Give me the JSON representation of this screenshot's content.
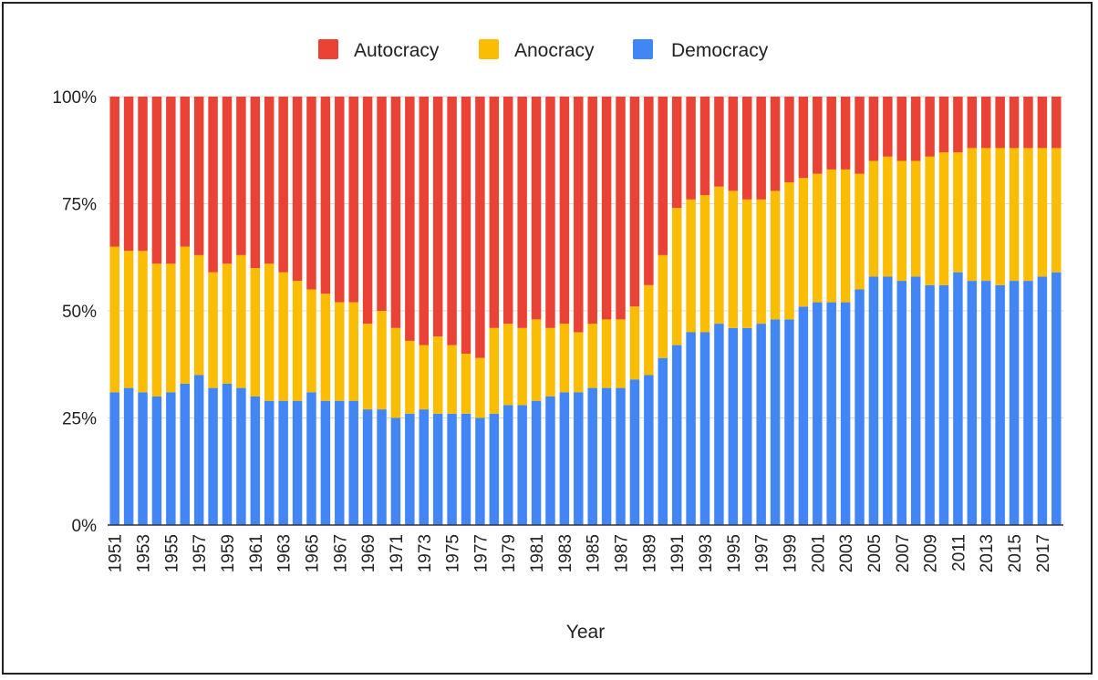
{
  "colors": {
    "democracy": "#4285f4",
    "anocracy": "#fbbc04",
    "autocracy": "#ea4335"
  },
  "legend": [
    {
      "label": "Autocracy",
      "color": "#ea4335"
    },
    {
      "label": "Anocracy",
      "color": "#fbbc04"
    },
    {
      "label": "Democracy",
      "color": "#4285f4"
    }
  ],
  "chart_data": {
    "type": "bar",
    "stacked": true,
    "percent_stacked": true,
    "xlabel": "Year",
    "ylabel": "",
    "ylim": [
      0,
      100
    ],
    "yticks": [
      "0%",
      "25%",
      "50%",
      "75%",
      "100%"
    ],
    "grid": true,
    "legend_position": "top",
    "categories": [
      "1951",
      "1952",
      "1953",
      "1954",
      "1955",
      "1956",
      "1957",
      "1958",
      "1959",
      "1960",
      "1961",
      "1962",
      "1963",
      "1964",
      "1965",
      "1966",
      "1967",
      "1968",
      "1969",
      "1970",
      "1971",
      "1972",
      "1973",
      "1974",
      "1975",
      "1976",
      "1977",
      "1978",
      "1979",
      "1980",
      "1981",
      "1982",
      "1983",
      "1984",
      "1985",
      "1986",
      "1987",
      "1988",
      "1989",
      "1990",
      "1991",
      "1992",
      "1993",
      "1994",
      "1995",
      "1996",
      "1997",
      "1998",
      "1999",
      "2000",
      "2001",
      "2002",
      "2003",
      "2004",
      "2005",
      "2006",
      "2007",
      "2008",
      "2009",
      "2010",
      "2011",
      "2012",
      "2013",
      "2014",
      "2015",
      "2016",
      "2017",
      "2018"
    ],
    "tick_labels": [
      "1951",
      "1953",
      "1955",
      "1957",
      "1959",
      "1961",
      "1963",
      "1965",
      "1967",
      "1969",
      "1971",
      "1973",
      "1975",
      "1977",
      "1979",
      "1981",
      "1983",
      "1985",
      "1987",
      "1989",
      "1991",
      "1993",
      "1995",
      "1997",
      "1999",
      "2001",
      "2003",
      "2005",
      "2007",
      "2009",
      "2011",
      "2013",
      "2015",
      "2017"
    ],
    "series": [
      {
        "name": "Democracy",
        "color": "#4285f4",
        "values": [
          31,
          32,
          31,
          30,
          31,
          33,
          35,
          32,
          33,
          32,
          30,
          29,
          29,
          29,
          31,
          29,
          29,
          29,
          27,
          27,
          25,
          26,
          27,
          26,
          26,
          26,
          25,
          26,
          28,
          28,
          29,
          30,
          31,
          31,
          32,
          32,
          32,
          34,
          35,
          39,
          42,
          45,
          45,
          47,
          46,
          46,
          47,
          48,
          48,
          51,
          52,
          52,
          52,
          55,
          58,
          58,
          57,
          58,
          56,
          56,
          59,
          57,
          57,
          56,
          57,
          57,
          58,
          59
        ]
      },
      {
        "name": "Anocracy",
        "color": "#fbbc04",
        "values": [
          34,
          32,
          33,
          31,
          30,
          32,
          28,
          27,
          28,
          31,
          30,
          32,
          30,
          28,
          24,
          25,
          23,
          23,
          20,
          23,
          21,
          17,
          15,
          18,
          16,
          14,
          14,
          20,
          19,
          18,
          19,
          16,
          16,
          14,
          15,
          16,
          16,
          17,
          21,
          24,
          32,
          31,
          32,
          32,
          32,
          30,
          29,
          30,
          32,
          30,
          30,
          31,
          31,
          27,
          27,
          28,
          28,
          27,
          30,
          31,
          28,
          31,
          31,
          32,
          31,
          31,
          30,
          29
        ]
      },
      {
        "name": "Autocracy",
        "color": "#ea4335",
        "values": [
          35,
          36,
          36,
          39,
          39,
          35,
          37,
          41,
          39,
          37,
          40,
          39,
          41,
          43,
          45,
          46,
          48,
          48,
          53,
          50,
          54,
          57,
          58,
          56,
          58,
          60,
          61,
          54,
          53,
          54,
          52,
          54,
          53,
          55,
          53,
          52,
          52,
          49,
          44,
          37,
          26,
          24,
          23,
          21,
          22,
          24,
          24,
          22,
          20,
          19,
          18,
          17,
          17,
          18,
          15,
          14,
          15,
          15,
          14,
          13,
          13,
          12,
          12,
          12,
          12,
          12,
          12,
          12
        ]
      }
    ]
  }
}
